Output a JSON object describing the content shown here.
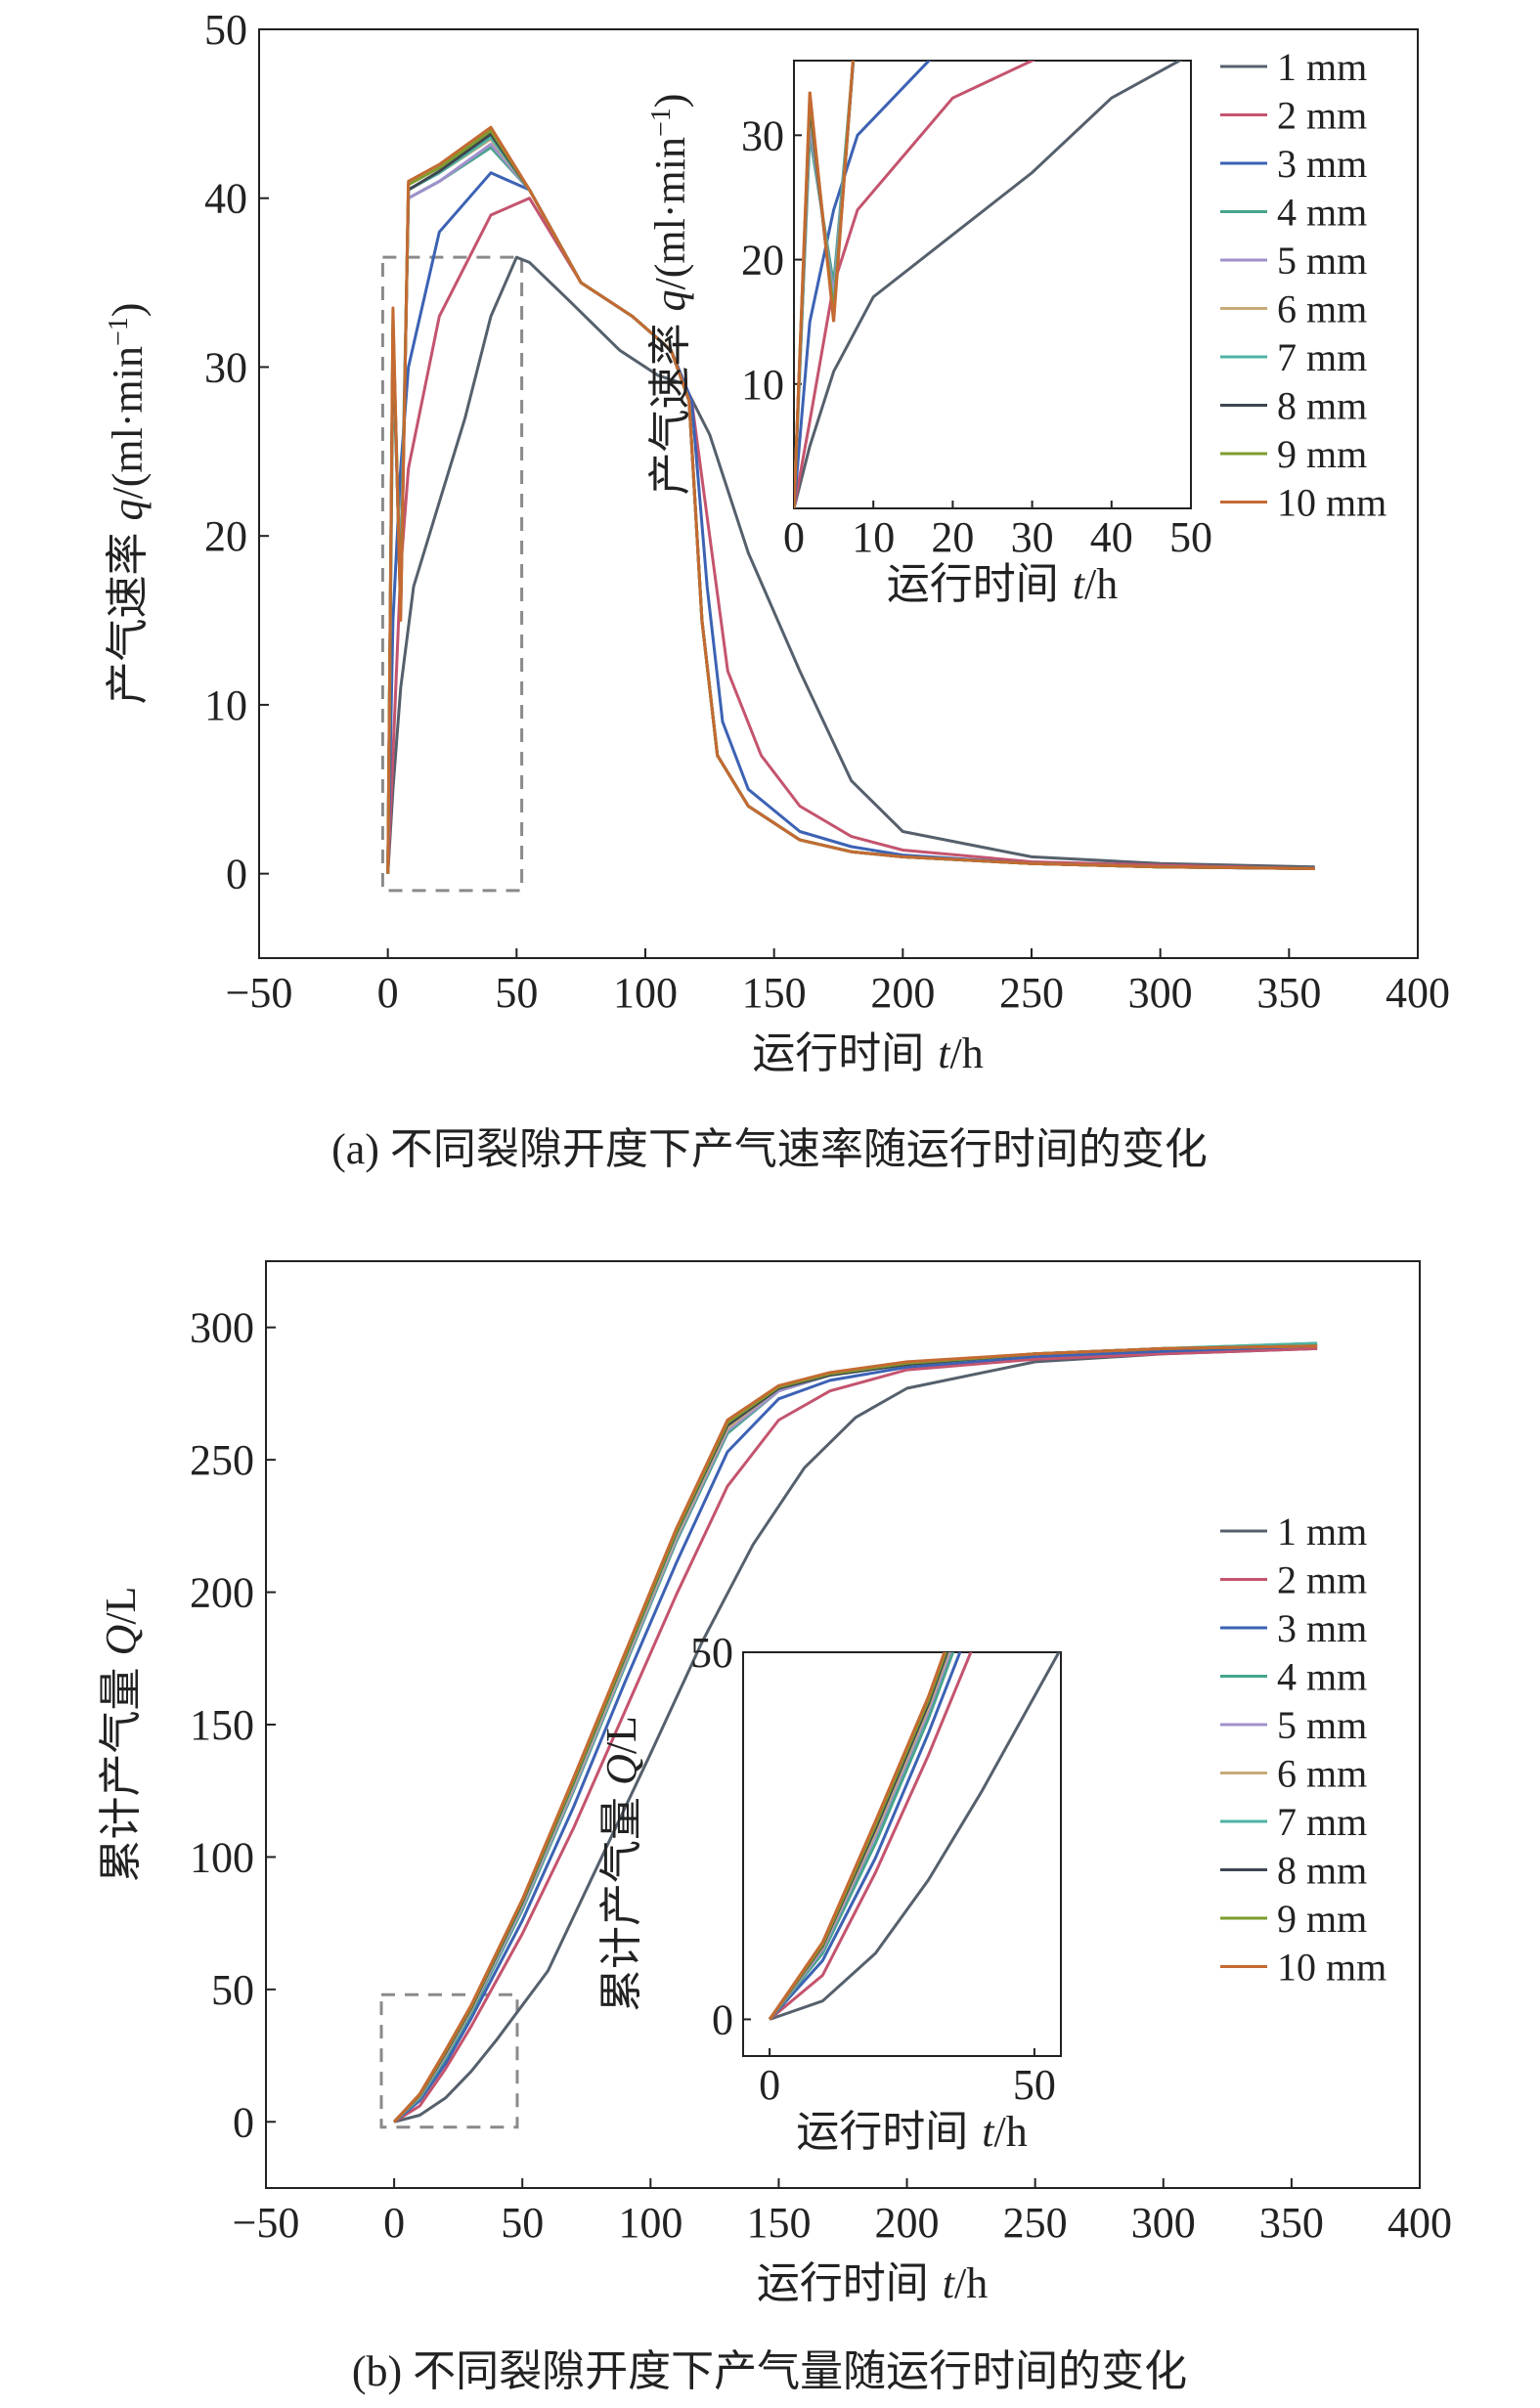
{
  "chart_data": [
    {
      "type": "line",
      "caption": "(a) 不同裂隙开度下产气速率随运行时间的变化",
      "xlabel_main": "运行时间",
      "xlabel_var": "t",
      "xlabel_unit": "/h",
      "ylabel_main": "产气速率",
      "ylabel_var": "q",
      "ylabel_unit": "/(ml·min",
      "ylabel_sup": "−1",
      "ylabel_close": ")",
      "xlim": [
        -50,
        400
      ],
      "ylim": [
        -5,
        50
      ],
      "xticks": [
        "−50",
        "0",
        "50",
        "100",
        "150",
        "200",
        "250",
        "300",
        "350",
        "400"
      ],
      "yticks": [
        "0",
        "10",
        "20",
        "30",
        "40",
        "50"
      ],
      "legend_position": "top-right",
      "inset": {
        "xlim": [
          0,
          50
        ],
        "ylim": [
          0,
          36
        ],
        "xticks": [
          "0",
          "10",
          "20",
          "30",
          "40",
          "50"
        ],
        "yticks": [
          "10",
          "20",
          "30"
        ],
        "xlabel_main": "运行时间",
        "xlabel_var": "t",
        "xlabel_unit": "/h",
        "ylabel_main": "产气速率",
        "ylabel_var": "q",
        "ylabel_unit": "/(ml·min",
        "ylabel_sup": "−1",
        "ylabel_close": ")"
      },
      "series": [
        {
          "name": "1 mm",
          "color": "#55606c",
          "x": [
            0,
            2,
            5,
            10,
            20,
            30,
            40,
            50,
            55,
            70,
            90,
            105,
            115,
            125,
            140,
            160,
            180,
            200,
            250,
            300,
            360
          ],
          "y": [
            0,
            5,
            11,
            17,
            22,
            27,
            33,
            36.5,
            36.2,
            34,
            31,
            29.5,
            29,
            26,
            19,
            12,
            5.5,
            2.5,
            1.0,
            0.6,
            0.4
          ]
        },
        {
          "name": "2 mm",
          "color": "#c4546e",
          "x": [
            0,
            2,
            5,
            8,
            20,
            40,
            55,
            75,
            95,
            110,
            118,
            125,
            132,
            145,
            160,
            180,
            200,
            250,
            300,
            360
          ],
          "y": [
            0,
            7,
            18,
            24,
            33,
            39,
            40,
            35,
            33,
            31,
            28,
            20,
            12,
            7,
            4,
            2.2,
            1.4,
            0.7,
            0.5,
            0.3
          ]
        },
        {
          "name": "3 mm",
          "color": "#3c62b4",
          "x": [
            0,
            2,
            5,
            8,
            20,
            40,
            55,
            75,
            95,
            110,
            118,
            124,
            130,
            140,
            160,
            180,
            200,
            250,
            300,
            360
          ],
          "y": [
            0,
            15,
            24,
            30,
            38,
            41.5,
            40.5,
            35,
            33,
            31,
            28,
            17,
            9,
            5,
            2.5,
            1.6,
            1.1,
            0.6,
            0.4,
            0.3
          ]
        },
        {
          "name": "4 mm",
          "color": "#46a48c",
          "x": [
            0,
            2,
            5,
            8,
            20,
            40,
            55,
            75,
            95,
            110,
            117,
            122,
            128,
            140,
            160,
            180,
            200,
            250,
            300,
            360
          ],
          "y": [
            0,
            30,
            18,
            40,
            41,
            43,
            40.5,
            35,
            33,
            31,
            28,
            15,
            7,
            4,
            2,
            1.3,
            1.0,
            0.6,
            0.4,
            0.3
          ]
        },
        {
          "name": "5 mm",
          "color": "#a090cc",
          "x": [
            0,
            2,
            5,
            8,
            20,
            40,
            55,
            75,
            95,
            110,
            117,
            122,
            128,
            140,
            160,
            180,
            200,
            250,
            300,
            360
          ],
          "y": [
            0,
            31,
            17,
            40,
            41,
            43.2,
            40.5,
            35,
            33,
            31,
            28,
            15,
            7,
            4,
            2,
            1.3,
            1.0,
            0.6,
            0.4,
            0.3
          ]
        },
        {
          "name": "6 mm",
          "color": "#c8aa7a",
          "x": [
            0,
            2,
            5,
            8,
            20,
            40,
            55,
            75,
            95,
            110,
            117,
            122,
            128,
            140,
            160,
            180,
            200,
            250,
            300,
            360
          ],
          "y": [
            0,
            32,
            16,
            40.5,
            41.5,
            43.5,
            40.5,
            35,
            33,
            31,
            28,
            15,
            7,
            4,
            2,
            1.3,
            1.0,
            0.6,
            0.4,
            0.3
          ]
        },
        {
          "name": "7 mm",
          "color": "#4eb3a3",
          "x": [
            0,
            2,
            5,
            8,
            20,
            40,
            55,
            75,
            95,
            110,
            117,
            122,
            128,
            140,
            160,
            180,
            200,
            250,
            300,
            360
          ],
          "y": [
            0,
            32.5,
            16,
            40.5,
            41.5,
            43.6,
            40.5,
            35,
            33,
            31,
            28,
            15,
            7,
            4,
            2,
            1.3,
            1.0,
            0.6,
            0.4,
            0.3
          ]
        },
        {
          "name": "8 mm",
          "color": "#3e4650",
          "x": [
            0,
            2,
            5,
            8,
            20,
            40,
            55,
            75,
            95,
            110,
            117,
            122,
            128,
            140,
            160,
            180,
            200,
            250,
            300,
            360
          ],
          "y": [
            0,
            32.5,
            15.5,
            40.5,
            41.6,
            43.8,
            40.5,
            35,
            33,
            31,
            28,
            15,
            7,
            4,
            2,
            1.3,
            1.0,
            0.6,
            0.4,
            0.3
          ]
        },
        {
          "name": "9 mm",
          "color": "#7e9c2e",
          "x": [
            0,
            2,
            5,
            8,
            20,
            40,
            55,
            75,
            95,
            110,
            117,
            122,
            128,
            140,
            160,
            180,
            200,
            250,
            300,
            360
          ],
          "y": [
            0,
            33,
            15.5,
            40.8,
            41.8,
            44,
            40.5,
            35,
            33,
            31,
            28,
            15,
            7,
            4,
            2,
            1.3,
            1.0,
            0.6,
            0.4,
            0.3
          ]
        },
        {
          "name": "10 mm",
          "color": "#c46a32",
          "x": [
            0,
            2,
            5,
            8,
            20,
            40,
            55,
            75,
            95,
            110,
            117,
            122,
            128,
            140,
            160,
            180,
            200,
            250,
            300,
            360
          ],
          "y": [
            0,
            33.5,
            15,
            41,
            42,
            44.2,
            40.5,
            35,
            33,
            31,
            28,
            15,
            7,
            4,
            2,
            1.3,
            1.0,
            0.6,
            0.4,
            0.3
          ]
        }
      ]
    },
    {
      "type": "line",
      "caption": "(b) 不同裂隙开度下产气量随运行时间的变化",
      "xlabel_main": "运行时间",
      "xlabel_var": "t",
      "xlabel_unit": "/h",
      "ylabel_main": "累计产气量",
      "ylabel_var": "Q",
      "ylabel_unit": "/L",
      "xlim": [
        -50,
        400
      ],
      "ylim": [
        -25,
        325
      ],
      "xticks": [
        "−50",
        "0",
        "50",
        "100",
        "150",
        "200",
        "250",
        "300",
        "350",
        "400"
      ],
      "yticks": [
        "0",
        "50",
        "100",
        "150",
        "200",
        "250",
        "300"
      ],
      "legend_position": "right",
      "inset": {
        "xlim": [
          -5,
          55
        ],
        "ylim": [
          -5,
          50
        ],
        "xticks": [
          "0",
          "50"
        ],
        "yticks": [
          "0",
          "50"
        ],
        "xlabel_main": "运行时间",
        "xlabel_var": "t",
        "xlabel_unit": "/h",
        "ylabel_main": "累计产气量",
        "ylabel_var": "Q",
        "ylabel_unit": "/L"
      },
      "series": [
        {
          "name": "1 mm",
          "color": "#55606c",
          "x": [
            0,
            10,
            20,
            30,
            40,
            60,
            80,
            100,
            120,
            140,
            160,
            180,
            200,
            250,
            300,
            360
          ],
          "y": [
            0,
            2.5,
            9,
            19,
            31,
            57,
            98,
            139,
            181,
            218,
            247,
            266,
            277,
            287,
            290,
            292
          ]
        },
        {
          "name": "2 mm",
          "color": "#c4546e",
          "x": [
            0,
            10,
            20,
            30,
            50,
            70,
            90,
            110,
            130,
            150,
            170,
            200,
            250,
            300,
            360
          ],
          "y": [
            0,
            6,
            20,
            36,
            71,
            111,
            155,
            199,
            240,
            265,
            276,
            284,
            288,
            290,
            292
          ]
        },
        {
          "name": "3 mm",
          "color": "#3c62b4",
          "x": [
            0,
            10,
            20,
            30,
            50,
            70,
            90,
            110,
            130,
            150,
            170,
            200,
            250,
            300,
            360
          ],
          "y": [
            0,
            8,
            22,
            39,
            76,
            119,
            166,
            211,
            253,
            273,
            280,
            285,
            289,
            291,
            293
          ]
        },
        {
          "name": "4 mm",
          "color": "#46a48c",
          "x": [
            0,
            10,
            20,
            30,
            50,
            70,
            90,
            110,
            130,
            150,
            170,
            200,
            250,
            300,
            360
          ],
          "y": [
            0,
            9,
            24,
            41,
            80,
            125,
            172,
            219,
            260,
            276,
            282,
            286,
            290,
            292,
            294
          ]
        },
        {
          "name": "5 mm",
          "color": "#a090cc",
          "x": [
            0,
            10,
            20,
            30,
            50,
            70,
            90,
            110,
            130,
            150,
            170,
            200,
            250,
            300,
            360
          ],
          "y": [
            0,
            9.5,
            25,
            42,
            81,
            126,
            173,
            220,
            261,
            276,
            282,
            286,
            290,
            292,
            293
          ]
        },
        {
          "name": "6 mm",
          "color": "#c8aa7a",
          "x": [
            0,
            10,
            20,
            30,
            50,
            70,
            90,
            110,
            130,
            150,
            170,
            200,
            250,
            300,
            360
          ],
          "y": [
            0,
            9.8,
            25.5,
            42.5,
            82,
            127,
            174,
            221,
            262,
            277,
            282,
            286,
            290,
            292,
            293
          ]
        },
        {
          "name": "7 mm",
          "color": "#4eb3a3",
          "x": [
            0,
            10,
            20,
            30,
            50,
            70,
            90,
            110,
            130,
            150,
            170,
            200,
            250,
            300,
            360
          ],
          "y": [
            0,
            10,
            26,
            43,
            82.5,
            128,
            175,
            222,
            263,
            277,
            282,
            286,
            290,
            292,
            294
          ]
        },
        {
          "name": "8 mm",
          "color": "#3e4650",
          "x": [
            0,
            10,
            20,
            30,
            50,
            70,
            90,
            110,
            130,
            150,
            170,
            200,
            250,
            300,
            360
          ],
          "y": [
            0,
            10,
            26,
            43,
            83,
            128.5,
            175.5,
            222.5,
            263,
            277,
            282,
            286,
            290,
            292,
            293
          ]
        },
        {
          "name": "9 mm",
          "color": "#7e9c2e",
          "x": [
            0,
            10,
            20,
            30,
            50,
            70,
            90,
            110,
            130,
            150,
            170,
            200,
            250,
            300,
            360
          ],
          "y": [
            0,
            10.2,
            26.5,
            43.5,
            83.5,
            129,
            176,
            223,
            264,
            277.5,
            282.5,
            286.5,
            290,
            292,
            293
          ]
        },
        {
          "name": "10 mm",
          "color": "#c46a32",
          "x": [
            0,
            10,
            20,
            30,
            50,
            70,
            90,
            110,
            130,
            150,
            170,
            200,
            250,
            300,
            360
          ],
          "y": [
            0,
            10.5,
            27,
            44,
            84,
            130,
            177,
            224,
            265,
            278,
            283,
            287,
            290,
            292,
            293
          ]
        }
      ]
    }
  ]
}
